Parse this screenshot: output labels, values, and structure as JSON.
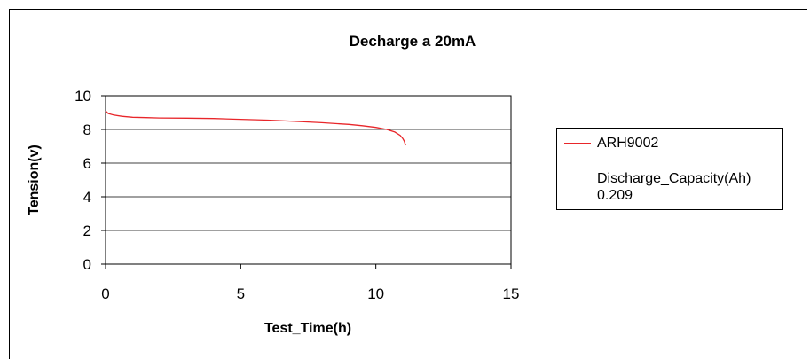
{
  "chart_data": {
    "type": "line",
    "title": "Decharge a 20mA",
    "xlabel": "Test_Time(h)",
    "ylabel": "Tension(v)",
    "xlim": [
      0,
      15
    ],
    "ylim": [
      0,
      10
    ],
    "xticks": [
      "0",
      "5",
      "10",
      "15"
    ],
    "yticks": [
      "0",
      "2",
      "4",
      "6",
      "8",
      "10"
    ],
    "grid": "horizontal",
    "legend_position": "right",
    "series": [
      {
        "name": "ARH9002",
        "color": "#e8262a",
        "x": [
          0.0,
          0.1,
          0.3,
          0.6,
          1.0,
          1.5,
          2.0,
          3.0,
          4.0,
          5.0,
          6.0,
          7.0,
          8.0,
          9.0,
          9.5,
          10.0,
          10.4,
          10.7,
          10.9,
          11.0,
          11.05,
          11.1
        ],
        "y": [
          9.1,
          8.95,
          8.85,
          8.78,
          8.72,
          8.7,
          8.68,
          8.67,
          8.65,
          8.6,
          8.55,
          8.48,
          8.4,
          8.3,
          8.22,
          8.12,
          8.0,
          7.85,
          7.65,
          7.45,
          7.3,
          7.05
        ]
      }
    ],
    "annotation": {
      "label": "Discharge_Capacity(Ah)",
      "value": "0.209"
    }
  }
}
